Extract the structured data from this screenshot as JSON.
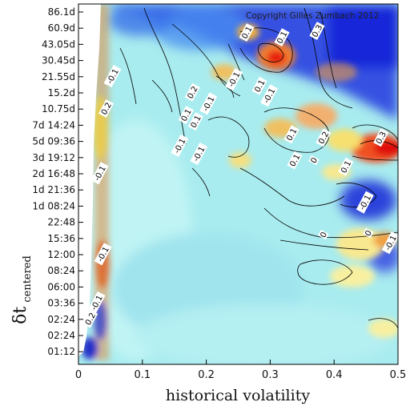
{
  "chart_data": {
    "type": "heatmap",
    "title": "",
    "xlabel": "historical volatility",
    "ylabel": "δt",
    "ylabel_subscript": "centered",
    "copyright": "Copyright Gilles Zumbach 2012",
    "xlim": [
      0,
      0.5
    ],
    "x_ticks": [
      "0",
      "0.1",
      "0.2",
      "0.3",
      "0.4",
      "0.5"
    ],
    "x_tick_values": [
      0,
      0.1,
      0.2,
      0.3,
      0.4,
      0.5
    ],
    "y_ticks": [
      "86.1d",
      "60.9d",
      "43.05d",
      "30.45d",
      "21.55d",
      "15.2d",
      "10.75d",
      "7d 14:24",
      "5d 09:36",
      "3d 19:12",
      "2d 16:48",
      "1d 21:36",
      "1d 08:24",
      "22:48",
      "15:36",
      "12:00",
      "08:24",
      "06:00",
      "03:36",
      "02:24",
      "02:24",
      "01:12"
    ],
    "contour_levels": [
      -0.2,
      -0.1,
      0,
      0.1,
      0.2,
      0.3
    ],
    "contour_labels": [
      {
        "text": "-0.1",
        "x": 0.055,
        "y": 4
      },
      {
        "text": "0.2",
        "x": 0.045,
        "y": 6
      },
      {
        "text": "-0.1",
        "x": 0.035,
        "y": 10
      },
      {
        "text": "-0.1",
        "x": 0.04,
        "y": 15
      },
      {
        "text": "-0.1",
        "x": 0.03,
        "y": 18
      },
      {
        "text": "0.2",
        "x": 0.02,
        "y": 19
      },
      {
        "text": "0.2",
        "x": 0.18,
        "y": 5
      },
      {
        "text": "0.1",
        "x": 0.17,
        "y": 6.4
      },
      {
        "text": "-0.1",
        "x": 0.205,
        "y": 5.7
      },
      {
        "text": "0.1",
        "x": 0.185,
        "y": 6.8
      },
      {
        "text": "-0.1",
        "x": 0.16,
        "y": 8.3
      },
      {
        "text": "-0.1",
        "x": 0.19,
        "y": 8.8
      },
      {
        "text": "0.1",
        "x": 0.265,
        "y": 1.3
      },
      {
        "text": "-0.1",
        "x": 0.245,
        "y": 4.2
      },
      {
        "text": "0.1",
        "x": 0.285,
        "y": 4.6
      },
      {
        "text": "-0.1",
        "x": 0.3,
        "y": 5.2
      },
      {
        "text": "0.1",
        "x": 0.32,
        "y": 1.6
      },
      {
        "text": "0.1",
        "x": 0.335,
        "y": 7.6
      },
      {
        "text": "0.1",
        "x": 0.34,
        "y": 9.2
      },
      {
        "text": "0.2",
        "x": 0.385,
        "y": 7.8
      },
      {
        "text": "0",
        "x": 0.37,
        "y": 9.2
      },
      {
        "text": "0.1",
        "x": 0.42,
        "y": 9.6
      },
      {
        "text": "-0.1",
        "x": 0.45,
        "y": 11.8
      },
      {
        "text": "0",
        "x": 0.385,
        "y": 13.8
      },
      {
        "text": "0",
        "x": 0.455,
        "y": 13.7
      },
      {
        "text": "0.3",
        "x": 0.375,
        "y": 1.2
      },
      {
        "text": "0.3",
        "x": 0.475,
        "y": 7.8
      },
      {
        "text": "-0.1",
        "x": 0.49,
        "y": 14.3
      }
    ]
  }
}
